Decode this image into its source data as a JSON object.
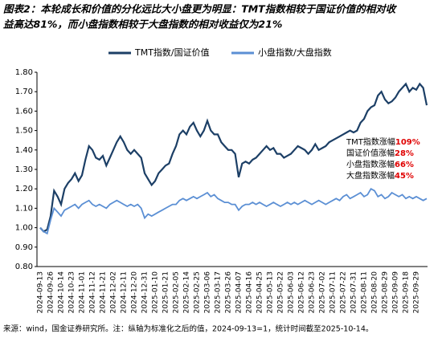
{
  "chart_data": {
    "type": "line",
    "title": [
      "图表2：本轮成长和价值的分化远比大小盘更为明显：TMT指数相较于国证价值的相对收",
      "益高达81%，而小盘指数相较于大盘指数的相对收益仅为21%"
    ],
    "source": "来源：wind，国金证券研究所。注：纵轴为标准化之后的值，2024-09-13=1，统计时间截至2025-10-14。",
    "categories": [
      "2024-09-13",
      null,
      null,
      "2024-09-26",
      null,
      null,
      "2024-10-14",
      null,
      null,
      "2024-10-23",
      null,
      null,
      "2024-11-01",
      null,
      null,
      "2024-11-12",
      null,
      null,
      "2024-11-21",
      null,
      null,
      "2024-12-02",
      null,
      null,
      "2024-12-11",
      null,
      null,
      "2024-12-20",
      null,
      null,
      "2024-12-31",
      null,
      null,
      "2025-01-10",
      null,
      null,
      "2025-01-21",
      null,
      null,
      "2025-02-05",
      null,
      null,
      "2025-02-14",
      null,
      null,
      "2025-02-25",
      null,
      null,
      "2025-03-06",
      null,
      null,
      "2025-03-17",
      null,
      null,
      "2025-03-26",
      null,
      null,
      "2025-04-07",
      null,
      null,
      "2025-04-16",
      null,
      null,
      "2025-04-25",
      null,
      null,
      "2025-05-13",
      null,
      null,
      "2025-05-22",
      null,
      null,
      "2025-06-03",
      null,
      null,
      "2025-06-12",
      null,
      null,
      "2025-06-23",
      null,
      null,
      "2025-07-02",
      null,
      null,
      "2025-07-11",
      null,
      null,
      "2025-07-22",
      null,
      null,
      "2025-07-31",
      null,
      null,
      "2025-08-11",
      null,
      null,
      "2025-08-20",
      null,
      null,
      "2025-08-29",
      null,
      null,
      "2025-09-09",
      null,
      null,
      "2025-09-18",
      null,
      null,
      "2025-09-29",
      null,
      null,
      null
    ],
    "series": [
      {
        "name": "TMT指数/国证价值",
        "color": "#1c3f66",
        "values": [
          1.0,
          0.98,
          0.99,
          1.06,
          1.19,
          1.16,
          1.12,
          1.2,
          1.23,
          1.25,
          1.28,
          1.24,
          1.27,
          1.35,
          1.42,
          1.4,
          1.36,
          1.35,
          1.37,
          1.32,
          1.36,
          1.4,
          1.44,
          1.47,
          1.44,
          1.4,
          1.38,
          1.4,
          1.38,
          1.36,
          1.28,
          1.25,
          1.22,
          1.24,
          1.28,
          1.3,
          1.32,
          1.33,
          1.38,
          1.42,
          1.48,
          1.5,
          1.48,
          1.52,
          1.54,
          1.5,
          1.47,
          1.5,
          1.55,
          1.5,
          1.48,
          1.48,
          1.44,
          1.42,
          1.4,
          1.4,
          1.38,
          1.26,
          1.33,
          1.34,
          1.33,
          1.35,
          1.36,
          1.38,
          1.4,
          1.42,
          1.4,
          1.41,
          1.38,
          1.38,
          1.36,
          1.37,
          1.38,
          1.4,
          1.42,
          1.41,
          1.4,
          1.38,
          1.4,
          1.43,
          1.4,
          1.41,
          1.42,
          1.44,
          1.45,
          1.46,
          1.47,
          1.48,
          1.49,
          1.5,
          1.49,
          1.5,
          1.54,
          1.56,
          1.6,
          1.62,
          1.63,
          1.68,
          1.7,
          1.66,
          1.64,
          1.65,
          1.67,
          1.7,
          1.72,
          1.74,
          1.7,
          1.72,
          1.71,
          1.74,
          1.72,
          1.63
        ]
      },
      {
        "name": "小盘指数/大盘指数",
        "color": "#5b8fd4",
        "values": [
          1.0,
          0.98,
          0.97,
          1.04,
          1.1,
          1.08,
          1.06,
          1.09,
          1.1,
          1.11,
          1.12,
          1.1,
          1.12,
          1.13,
          1.14,
          1.12,
          1.11,
          1.12,
          1.11,
          1.1,
          1.12,
          1.13,
          1.14,
          1.13,
          1.12,
          1.11,
          1.12,
          1.11,
          1.12,
          1.1,
          1.05,
          1.07,
          1.06,
          1.07,
          1.08,
          1.09,
          1.1,
          1.11,
          1.12,
          1.12,
          1.14,
          1.15,
          1.14,
          1.15,
          1.16,
          1.15,
          1.16,
          1.17,
          1.18,
          1.16,
          1.17,
          1.15,
          1.14,
          1.13,
          1.13,
          1.12,
          1.12,
          1.09,
          1.11,
          1.12,
          1.12,
          1.13,
          1.12,
          1.13,
          1.12,
          1.11,
          1.12,
          1.13,
          1.12,
          1.11,
          1.12,
          1.13,
          1.12,
          1.13,
          1.12,
          1.13,
          1.14,
          1.13,
          1.12,
          1.13,
          1.14,
          1.13,
          1.12,
          1.13,
          1.14,
          1.15,
          1.14,
          1.16,
          1.17,
          1.15,
          1.16,
          1.17,
          1.18,
          1.16,
          1.17,
          1.2,
          1.19,
          1.16,
          1.17,
          1.15,
          1.16,
          1.18,
          1.17,
          1.16,
          1.17,
          1.15,
          1.16,
          1.15,
          1.16,
          1.15,
          1.14,
          1.15
        ]
      }
    ],
    "annotations": [
      {
        "text": "TMT指数涨幅",
        "value": "109%"
      },
      {
        "text": "国证价值涨幅",
        "value": "28%"
      },
      {
        "text": "小盘指数涨幅",
        "value": "66%"
      },
      {
        "text": "大盘指数涨幅",
        "value": "45%"
      }
    ],
    "ylim": [
      0.8,
      1.8
    ],
    "yticks": [
      {
        "value": 0.8,
        "label": "0.80"
      },
      {
        "value": 0.9,
        "label": "0.90"
      },
      {
        "value": 1.0,
        "label": "1.00"
      },
      {
        "value": 1.1,
        "label": "1.10"
      },
      {
        "value": 1.2,
        "label": "1.20"
      },
      {
        "value": 1.3,
        "label": "1.30"
      },
      {
        "value": 1.4,
        "label": "1.40"
      },
      {
        "value": 1.5,
        "label": "1.50"
      },
      {
        "value": 1.6,
        "label": "1.60"
      },
      {
        "value": 1.7,
        "label": "1.70"
      },
      {
        "value": 1.8,
        "label": "1.80"
      }
    ]
  }
}
